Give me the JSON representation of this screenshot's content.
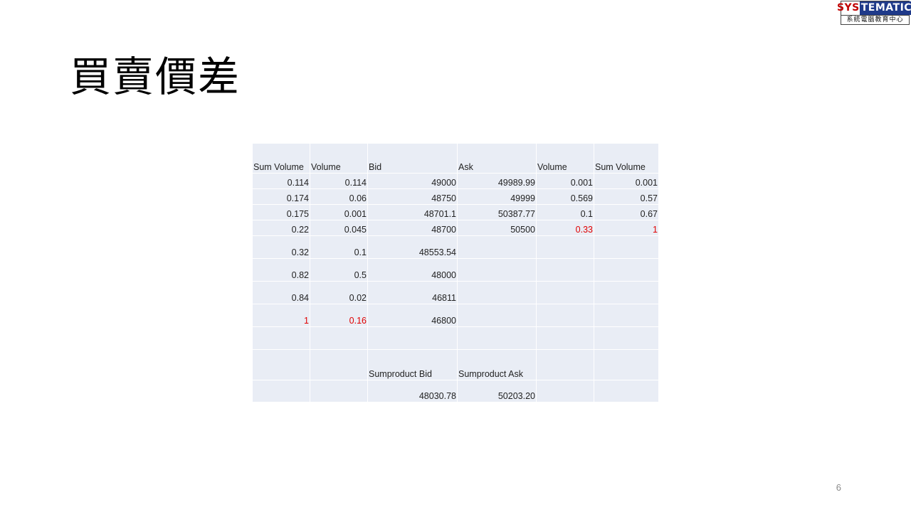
{
  "logo": {
    "part1": "SYS",
    "part2": "TEMATIC",
    "subtitle": "系統電腦教育中心"
  },
  "title": "買賣價差",
  "table": {
    "headers": [
      "Sum Volume",
      "Volume",
      "Bid",
      "Ask",
      "Volume",
      "Sum Volume"
    ],
    "rows": [
      [
        "0.114",
        "0.114",
        "49000",
        "49989.99",
        "0.001",
        "0.001"
      ],
      [
        "0.174",
        "0.06",
        "48750",
        "49999",
        "0.569",
        "0.57"
      ],
      [
        "0.175",
        "0.001",
        "48701.1",
        "50387.77",
        "0.1",
        "0.67"
      ],
      [
        "0.22",
        "0.045",
        "48700",
        "50500",
        "0.33",
        "1"
      ],
      [
        "0.32",
        "0.1",
        "48553.54",
        "",
        "",
        ""
      ],
      [
        "0.82",
        "0.5",
        "48000",
        "",
        "",
        ""
      ],
      [
        "0.84",
        "0.02",
        "46811",
        "",
        "",
        ""
      ],
      [
        "1",
        "0.16",
        "46800",
        "",
        "",
        ""
      ],
      [
        "",
        "",
        "",
        "",
        "",
        ""
      ],
      [
        "",
        "",
        "Sumproduct Bid",
        "Sumproduct Ask",
        "",
        ""
      ],
      [
        "",
        "",
        "48030.78",
        "50203.20",
        "",
        ""
      ]
    ],
    "highlight_color": "#e00000"
  },
  "page_number": "6"
}
